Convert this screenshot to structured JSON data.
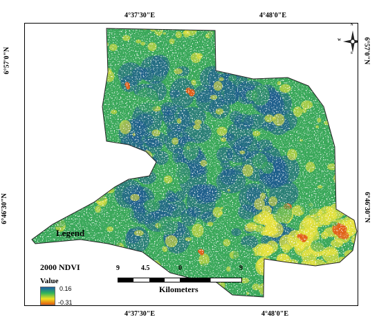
{
  "graticule": {
    "top": [
      "4°37'30\"E",
      "4°48'0\"E"
    ],
    "bottom": [
      "4°37'30\"E",
      "4°48'0\"E"
    ],
    "left": [
      "6°57'0\"N",
      "6°46'30\"N"
    ],
    "right": [
      "6°57'0\"N",
      "6°46'30\"N"
    ]
  },
  "legend": {
    "heading": "Legend",
    "layer": "2000 NDVI",
    "value_label": "Value",
    "max": "0.16",
    "min": "-0.31",
    "ramp": [
      "#1a5fa8",
      "#2fb35a",
      "#f0e020",
      "#e25a10"
    ]
  },
  "scalebar": {
    "ticks": [
      "9",
      "4.5",
      "0",
      "9"
    ],
    "unit": "Kilometers"
  },
  "north_arrow": {
    "N": "N",
    "S": "S",
    "E": "E",
    "W": "W"
  },
  "colors": {
    "blue": "#1f5e8e",
    "green": "#3aa85a",
    "yellow": "#e8e23a",
    "orange": "#e0601a"
  }
}
